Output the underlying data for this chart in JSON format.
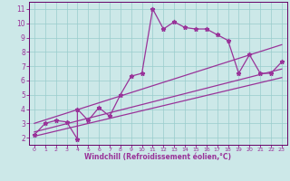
{
  "xlabel": "Windchill (Refroidissement éolien,°C)",
  "bg_color": "#cce8e8",
  "line_color": "#993399",
  "grid_color": "#99cccc",
  "data_x": [
    0,
    1,
    2,
    3,
    4,
    4,
    5,
    6,
    7,
    8,
    9,
    10,
    11,
    12,
    13,
    14,
    15,
    16,
    17,
    18,
    19,
    20,
    21,
    22,
    23
  ],
  "data_y": [
    2.2,
    3.0,
    3.2,
    3.1,
    1.9,
    4.0,
    3.2,
    4.1,
    3.5,
    5.0,
    6.3,
    6.5,
    11.0,
    9.6,
    10.1,
    9.7,
    9.6,
    9.6,
    9.2,
    8.8,
    6.5,
    7.8,
    6.5,
    6.5,
    7.3
  ],
  "trend_lines": [
    {
      "x": [
        0,
        23
      ],
      "y": [
        2.4,
        6.8
      ]
    },
    {
      "x": [
        0,
        23
      ],
      "y": [
        3.0,
        8.5
      ]
    },
    {
      "x": [
        0,
        23
      ],
      "y": [
        2.1,
        6.2
      ]
    }
  ],
  "xlim": [
    -0.5,
    23.5
  ],
  "ylim": [
    1.5,
    11.5
  ],
  "xticks": [
    0,
    1,
    2,
    3,
    4,
    5,
    6,
    7,
    8,
    9,
    10,
    11,
    12,
    13,
    14,
    15,
    16,
    17,
    18,
    19,
    20,
    21,
    22,
    23
  ],
  "yticks": [
    2,
    3,
    4,
    5,
    6,
    7,
    8,
    9,
    10,
    11
  ]
}
